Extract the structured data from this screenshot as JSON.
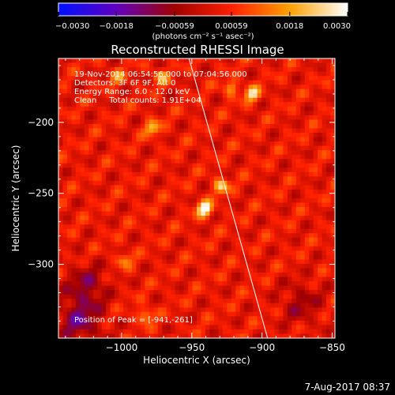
{
  "chart_data": {
    "type": "heatmap",
    "title": "Reconstructed RHESSI Image",
    "xlabel": "Heliocentric X (arcsec)",
    "ylabel": "Heliocentric Y (arcsec)",
    "xlim": [
      -1045,
      -848
    ],
    "ylim": [
      -352,
      -155
    ],
    "x_ticks": [
      -1000,
      -950,
      -900,
      -850
    ],
    "x_tick_labels": [
      "−1000",
      "−950",
      "−900",
      "−850"
    ],
    "y_ticks": [
      -200,
      -250,
      -300
    ],
    "y_tick_labels": [
      "−200",
      "−250",
      "−300"
    ],
    "colorbar": {
      "range": [
        -0.003,
        0.003
      ],
      "ticks": [
        -0.003,
        -0.0018,
        -0.00059,
        0.00059,
        0.0018,
        0.003
      ],
      "tick_labels": [
        "−0.0030",
        "−0.0018",
        "−0.00059",
        "0.00059",
        "0.0018",
        "0.0030"
      ],
      "units_label": "(photons cm⁻² s⁻¹ asec⁻²)",
      "colors": [
        "#0010ff",
        "#6000c0",
        "#a00000",
        "#ff2000",
        "#ffa000",
        "#ffffff"
      ]
    },
    "annotations": [
      "19-Nov-2014 06:54:56.000 to 07:04:56.000",
      "Detectors: 3F 6F 9F, Att 0",
      "Energy Range: 6.0 - 12.0 keV",
      "Clean     Total counts: 1.91E+04"
    ],
    "peak_label": "Position of Peak = [-941,-261]",
    "peak": [
      -941,
      -261
    ],
    "limb_line": [
      [
        -952,
        -155
      ],
      [
        -896,
        -352
      ]
    ],
    "bright_sources": [
      {
        "x": -941,
        "y": -261,
        "value": 0.003
      },
      {
        "x": -929,
        "y": -245,
        "value": 0.002
      },
      {
        "x": -907,
        "y": -180,
        "value": 0.0022
      },
      {
        "x": -978,
        "y": -204,
        "value": 0.0018
      },
      {
        "x": -972,
        "y": -168,
        "value": 0.0016
      },
      {
        "x": -922,
        "y": -176,
        "value": 0.0014
      },
      {
        "x": -1003,
        "y": -168,
        "value": 0.0013
      },
      {
        "x": -983,
        "y": -336,
        "value": 0.0015
      },
      {
        "x": -998,
        "y": -297,
        "value": 0.0012
      }
    ],
    "negative_regions": [
      {
        "x": -1025,
        "y": -315,
        "value": -0.0012
      },
      {
        "x": -1030,
        "y": -340,
        "value": -0.0015
      },
      {
        "x": -872,
        "y": -327,
        "value": -0.0009
      }
    ]
  },
  "footer": {
    "timestamp": "7-Aug-2017 08:37"
  }
}
